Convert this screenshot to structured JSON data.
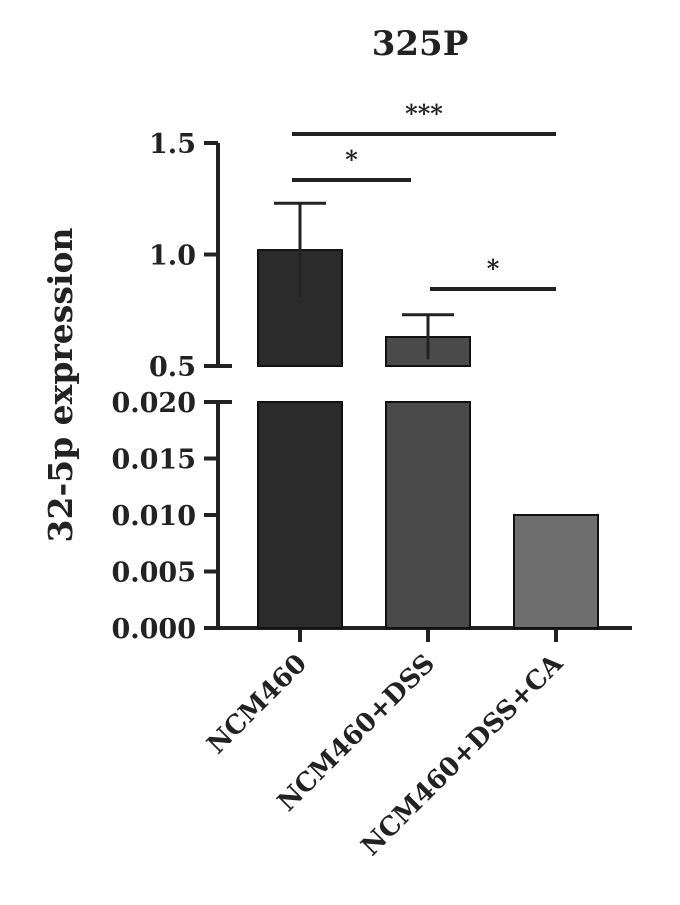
{
  "chart_data": {
    "type": "bar",
    "title": "325P",
    "ylabel": "32-5p expression",
    "xlabel": "",
    "categories": [
      "NCM460",
      "NCM460+DSS",
      "NCM460+DSS+CA"
    ],
    "values": [
      1.02,
      0.63,
      0.01
    ],
    "errors": [
      0.21,
      0.1,
      null
    ],
    "bar_colors": [
      "#2b2b2b",
      "#4a4a4a",
      "#6e6e6e"
    ],
    "broken_axis": true,
    "upper_segment": {
      "ylim": [
        0.5,
        1.5
      ],
      "ticks": [
        "0.5",
        "1.0",
        "1.5"
      ]
    },
    "lower_segment": {
      "ylim": [
        0,
        0.02
      ],
      "ticks": [
        "0.000",
        "0.005",
        "0.010",
        "0.015",
        "0.020"
      ]
    },
    "significance": [
      {
        "from": 0,
        "to": 2,
        "label": "***"
      },
      {
        "from": 0,
        "to": 1,
        "label": "*"
      },
      {
        "from": 1,
        "to": 2,
        "label": "*"
      }
    ],
    "grid": false,
    "legend": "none"
  }
}
